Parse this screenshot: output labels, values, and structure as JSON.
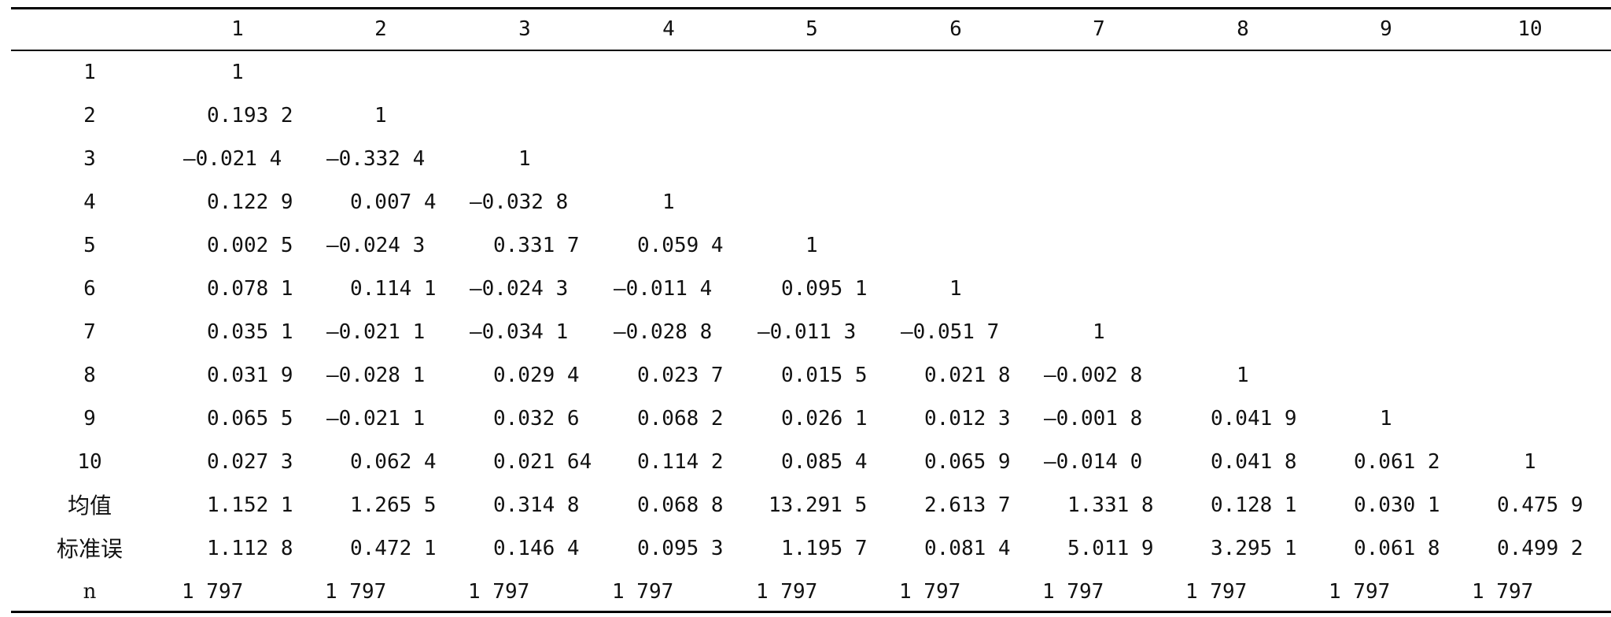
{
  "table": {
    "columns": [
      "1",
      "2",
      "3",
      "4",
      "5",
      "6",
      "7",
      "8",
      "9",
      "10"
    ],
    "rows": [
      {
        "label": "1",
        "cells": [
          "1"
        ]
      },
      {
        "label": "2",
        "cells": [
          "0.193 2",
          "1"
        ]
      },
      {
        "label": "3",
        "cells": [
          "—0.021 4",
          "—0.332 4",
          "1"
        ]
      },
      {
        "label": "4",
        "cells": [
          "0.122 9",
          "0.007 4",
          "—0.032 8",
          "1"
        ]
      },
      {
        "label": "5",
        "cells": [
          "0.002 5",
          "—0.024 3",
          "0.331 7",
          "0.059 4",
          "1"
        ]
      },
      {
        "label": "6",
        "cells": [
          "0.078 1",
          "0.114 1",
          "—0.024 3",
          "—0.011 4",
          "0.095 1",
          "1"
        ]
      },
      {
        "label": "7",
        "cells": [
          "0.035 1",
          "—0.021 1",
          "—0.034 1",
          "—0.028 8",
          "—0.011 3",
          "—0.051 7",
          "1"
        ]
      },
      {
        "label": "8",
        "cells": [
          "0.031 9",
          "—0.028 1",
          "0.029 4",
          "0.023 7",
          "0.015 5",
          "0.021 8",
          "—0.002 8",
          "1"
        ]
      },
      {
        "label": "9",
        "cells": [
          "0.065 5",
          "—0.021 1",
          "0.032 6",
          "0.068 2",
          "0.026 1",
          "0.012 3",
          "—0.001 8",
          "0.041 9",
          "1"
        ]
      },
      {
        "label": "10",
        "cells": [
          "0.027 3",
          "0.062 4",
          "0.021 64",
          "0.114 2",
          "0.085 4",
          "0.065 9",
          "—0.014 0",
          "0.041 8",
          "0.061 2",
          "1"
        ]
      },
      {
        "label": "均值",
        "cells": [
          "1.152 1",
          "1.265 5",
          "0.314 8",
          "0.068 8",
          "13.291 5",
          "2.613 7",
          "1.331 8",
          "0.128 1",
          "0.030 1",
          "0.475 9"
        ]
      },
      {
        "label": "标准误",
        "cells": [
          "1.112 8",
          "0.472 1",
          "0.146 4",
          "0.095 3",
          "1.195 7",
          "0.081 4",
          "5.011 9",
          "3.295 1",
          "0.061 8",
          "0.499 2"
        ]
      },
      {
        "label": "n",
        "cells": [
          "1 797",
          "1 797",
          "1 797",
          "1 797",
          "1 797",
          "1 797",
          "1 797",
          "1 797",
          "1 797",
          "1 797"
        ]
      }
    ]
  }
}
